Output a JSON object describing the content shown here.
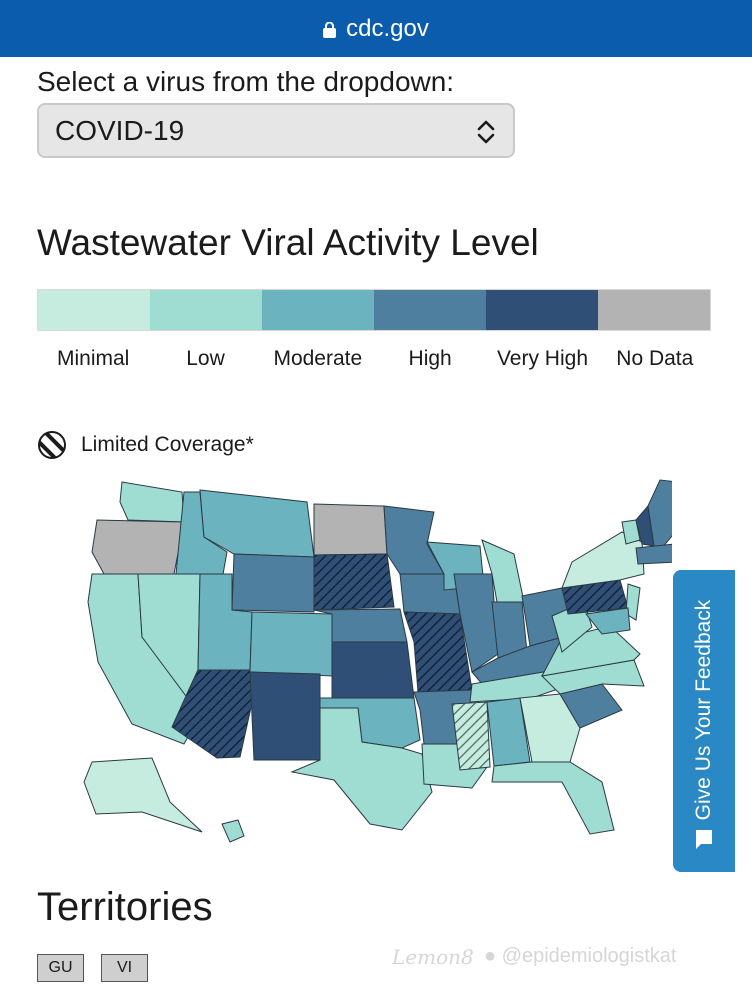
{
  "browser": {
    "url": "cdc.gov"
  },
  "selector": {
    "label": "Select a virus from the dropdown:",
    "value": "COVID-19"
  },
  "map_title": "Wastewater Viral Activity Level",
  "legend": [
    {
      "label": "Minimal",
      "color": "#c6ecdf"
    },
    {
      "label": "Low",
      "color": "#9fdcd2"
    },
    {
      "label": "Moderate",
      "color": "#6bb3bf"
    },
    {
      "label": "High",
      "color": "#4f7f9e"
    },
    {
      "label": "Very High",
      "color": "#2f4f77"
    },
    {
      "label": "No Data",
      "color": "#b3b3b3"
    }
  ],
  "limited_coverage": "Limited Coverage*",
  "feedback": "Give Us Your Feedback",
  "territories": {
    "title": "Territories",
    "items": [
      "GU",
      "VI"
    ]
  },
  "watermark": {
    "app": "Lemon8",
    "user": "@epidemiologistkat"
  },
  "states": [
    {
      "name": "WA",
      "level": "Low"
    },
    {
      "name": "OR",
      "level": "No Data"
    },
    {
      "name": "CA",
      "level": "Low"
    },
    {
      "name": "NV",
      "level": "Low"
    },
    {
      "name": "ID",
      "level": "Moderate"
    },
    {
      "name": "MT",
      "level": "Moderate"
    },
    {
      "name": "WY",
      "level": "High"
    },
    {
      "name": "UT",
      "level": "Moderate"
    },
    {
      "name": "AZ",
      "level": "Very High",
      "limited": true
    },
    {
      "name": "CO",
      "level": "Moderate"
    },
    {
      "name": "NM",
      "level": "Very High"
    },
    {
      "name": "ND",
      "level": "No Data"
    },
    {
      "name": "SD",
      "level": "Very High",
      "limited": true
    },
    {
      "name": "NE",
      "level": "High"
    },
    {
      "name": "KS",
      "level": "Very High"
    },
    {
      "name": "OK",
      "level": "Moderate"
    },
    {
      "name": "TX",
      "level": "Low"
    },
    {
      "name": "MN",
      "level": "High"
    },
    {
      "name": "IA",
      "level": "High"
    },
    {
      "name": "MO",
      "level": "Very High",
      "limited": true
    },
    {
      "name": "AR",
      "level": "High"
    },
    {
      "name": "LA",
      "level": "Low"
    },
    {
      "name": "WI",
      "level": "Moderate"
    },
    {
      "name": "IL",
      "level": "High"
    },
    {
      "name": "MI",
      "level": "Low"
    },
    {
      "name": "IN",
      "level": "High"
    },
    {
      "name": "OH",
      "level": "High"
    },
    {
      "name": "KY",
      "level": "High"
    },
    {
      "name": "TN",
      "level": "Low"
    },
    {
      "name": "MS",
      "level": "Minimal",
      "limited": true
    },
    {
      "name": "AL",
      "level": "Moderate"
    },
    {
      "name": "GA",
      "level": "Minimal"
    },
    {
      "name": "FL",
      "level": "Low"
    },
    {
      "name": "SC",
      "level": "High"
    },
    {
      "name": "NC",
      "level": "Low"
    },
    {
      "name": "VA",
      "level": "Low"
    },
    {
      "name": "WV",
      "level": "Low"
    },
    {
      "name": "PA",
      "level": "Very High",
      "limited": true
    },
    {
      "name": "NY",
      "level": "Minimal"
    },
    {
      "name": "VT",
      "level": "Low"
    },
    {
      "name": "NH",
      "level": "Very High"
    },
    {
      "name": "ME",
      "level": "High"
    },
    {
      "name": "MA",
      "level": "High"
    },
    {
      "name": "NJ",
      "level": "Low"
    },
    {
      "name": "MD",
      "level": "Moderate"
    },
    {
      "name": "AK",
      "level": "Minimal"
    },
    {
      "name": "HI",
      "level": "Low"
    }
  ]
}
